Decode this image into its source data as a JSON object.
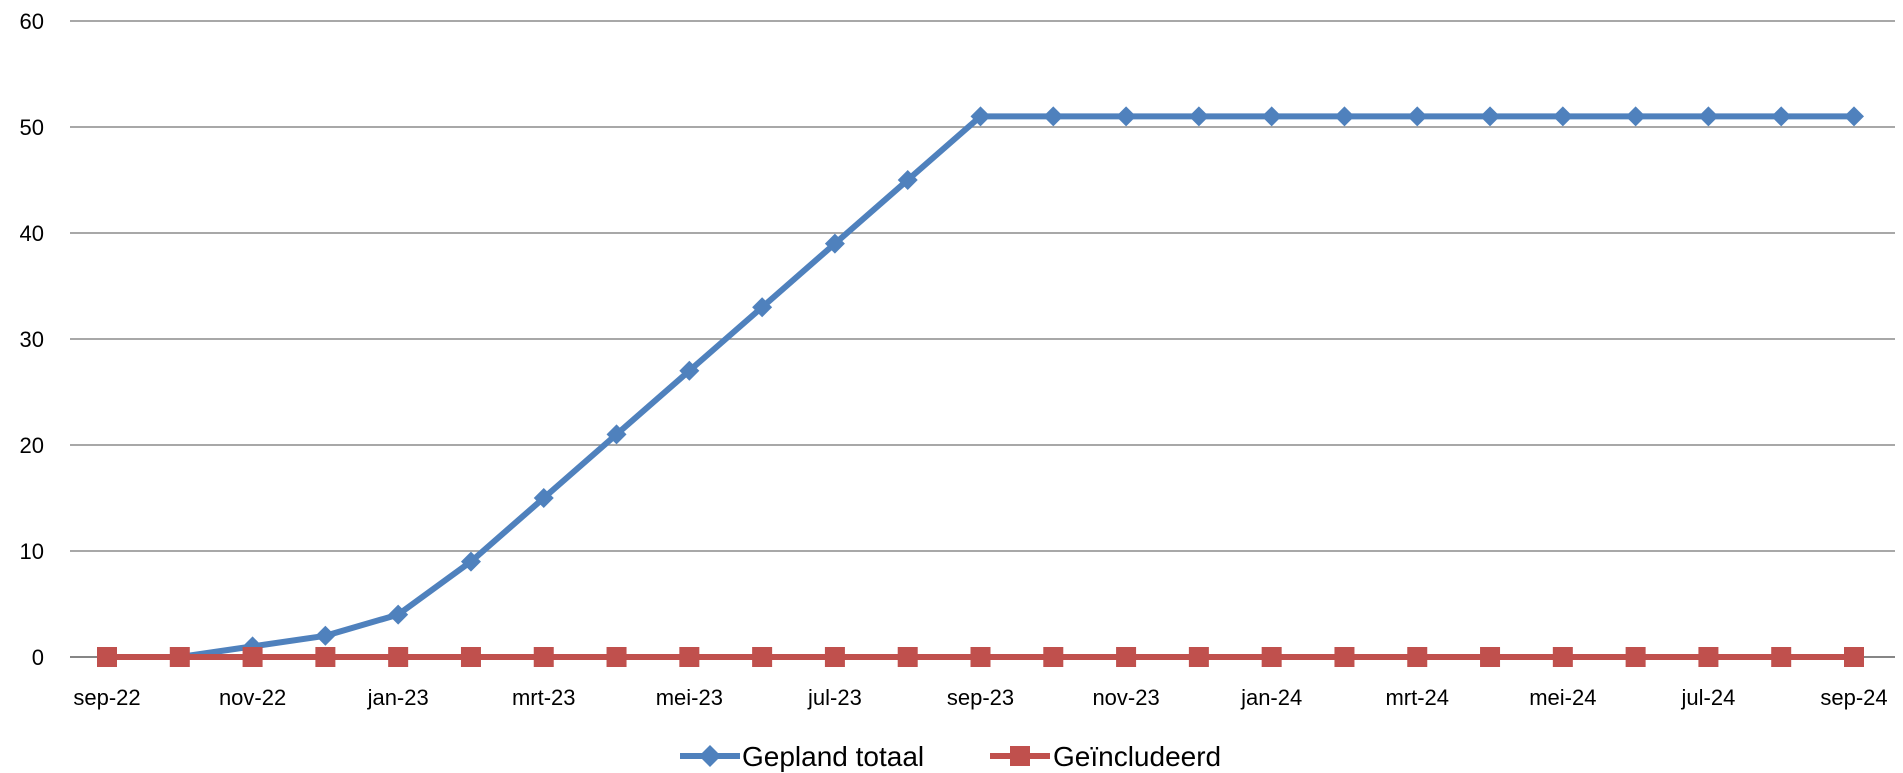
{
  "chart_data": {
    "type": "line",
    "x": [
      "sep-22",
      "okt-22",
      "nov-22",
      "dec-22",
      "jan-23",
      "feb-23",
      "mrt-23",
      "apr-23",
      "mei-23",
      "jun-23",
      "jul-23",
      "aug-23",
      "sep-23",
      "okt-23",
      "nov-23",
      "dec-23",
      "jan-24",
      "feb-24",
      "mrt-24",
      "apr-24",
      "mei-24",
      "jun-24",
      "jul-24",
      "aug-24",
      "sep-24"
    ],
    "x_tick_labels": [
      "sep-22",
      "nov-22",
      "jan-23",
      "mrt-23",
      "mei-23",
      "jul-23",
      "sep-23",
      "nov-23",
      "jan-24",
      "mrt-24",
      "mei-24",
      "jul-24",
      "sep-24"
    ],
    "ylim": [
      0,
      60
    ],
    "y_ticks": [
      0,
      10,
      20,
      30,
      40,
      50,
      60
    ],
    "grid": true,
    "legend_position": "bottom",
    "series": [
      {
        "name": "Gepland totaal",
        "color": "#4F81BD",
        "marker": "diamond",
        "values": [
          null,
          0,
          1,
          2,
          4,
          9,
          15,
          21,
          27,
          33,
          39,
          45,
          51,
          51,
          51,
          51,
          51,
          51,
          51,
          51,
          51,
          51,
          51,
          51,
          51
        ]
      },
      {
        "name": "Geïncludeerd",
        "color": "#C0504D",
        "marker": "square",
        "values": [
          0,
          0,
          0,
          0,
          0,
          0,
          0,
          0,
          0,
          0,
          0,
          0,
          0,
          0,
          0,
          0,
          0,
          0,
          0,
          0,
          0,
          0,
          0,
          0,
          0
        ]
      }
    ]
  }
}
